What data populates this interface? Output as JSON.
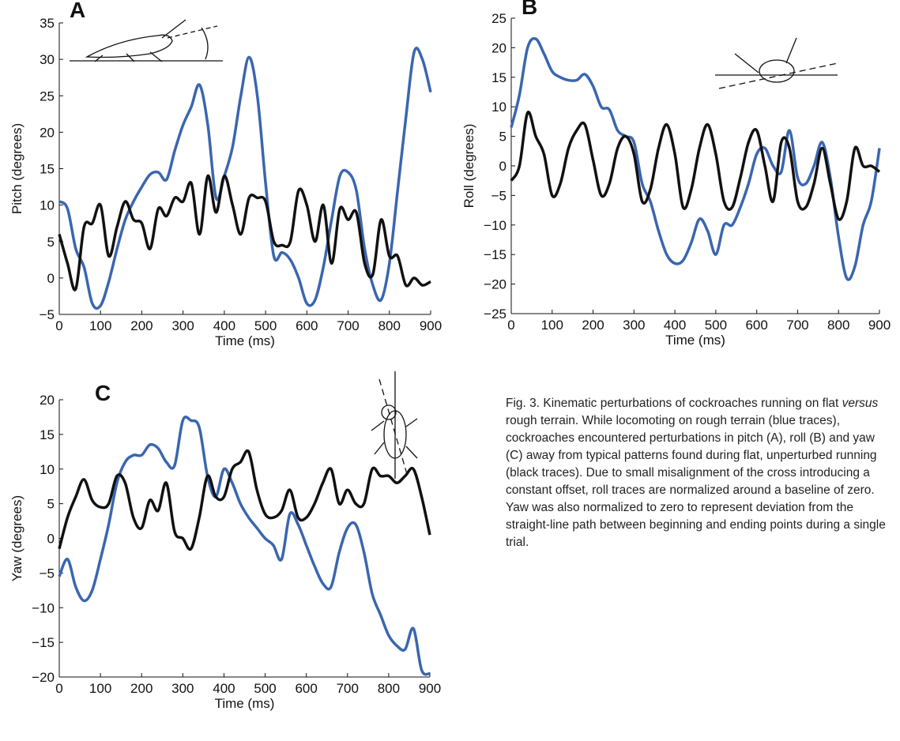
{
  "chart_data": [
    {
      "type": "line",
      "panel": "A",
      "xlabel": "Time (ms)",
      "ylabel": "Pitch (degrees)",
      "x": [
        0,
        20,
        40,
        60,
        80,
        100,
        120,
        140,
        160,
        180,
        200,
        220,
        240,
        260,
        280,
        300,
        320,
        340,
        360,
        380,
        400,
        420,
        440,
        460,
        480,
        500,
        520,
        540,
        560,
        580,
        600,
        620,
        640,
        660,
        680,
        700,
        720,
        740,
        760,
        780,
        800,
        820,
        840,
        860,
        880,
        900
      ],
      "series": [
        {
          "color": "#3a66b0",
          "values": [
            10.5,
            9.5,
            4,
            1.5,
            -3.5,
            -3.8,
            -0.5,
            4,
            8,
            10.5,
            12.5,
            14.2,
            14.5,
            13.5,
            17.5,
            21,
            23.5,
            26.5,
            21,
            11,
            14,
            18,
            25,
            30.3,
            25,
            13,
            3,
            3.5,
            2.5,
            0,
            -3.5,
            -3,
            1.5,
            8,
            14,
            14.5,
            12,
            4,
            -1,
            -3,
            2,
            12,
            22,
            31,
            30,
            25.5
          ]
        },
        {
          "color": "#111111",
          "values": [
            6,
            2,
            -1.5,
            7,
            7.5,
            10,
            3,
            7,
            10.5,
            8,
            7.5,
            4,
            9.5,
            8.5,
            11,
            10.5,
            13,
            6,
            14,
            9,
            14,
            10,
            6,
            11,
            11,
            10.5,
            5,
            4.5,
            5,
            12,
            10,
            5,
            10,
            2,
            9.5,
            8,
            9,
            2,
            0.5,
            8,
            3,
            3,
            -1,
            0,
            -1,
            -0.5
          ]
        }
      ],
      "xlim": [
        0,
        900
      ],
      "xticks": [
        0,
        100,
        200,
        300,
        400,
        500,
        600,
        700,
        800,
        900
      ],
      "ylim": [
        -5,
        35
      ],
      "yticks": [
        {
          "value": -5,
          "label": "−5"
        },
        0,
        5,
        10,
        15,
        20,
        25,
        30,
        35
      ],
      "grid": false
    },
    {
      "type": "line",
      "panel": "B",
      "xlabel": "Time (ms)",
      "ylabel": "Roll (degrees)",
      "x": [
        0,
        20,
        40,
        60,
        80,
        100,
        120,
        140,
        160,
        180,
        200,
        220,
        240,
        260,
        280,
        300,
        320,
        340,
        360,
        380,
        400,
        420,
        440,
        460,
        480,
        500,
        520,
        540,
        560,
        580,
        600,
        620,
        640,
        660,
        680,
        700,
        720,
        740,
        760,
        780,
        800,
        820,
        840,
        860,
        880,
        900
      ],
      "series": [
        {
          "color": "#3a66b0",
          "values": [
            6.5,
            12,
            20,
            21.5,
            19,
            16,
            15,
            14.5,
            14.5,
            15.5,
            13.5,
            10,
            9.5,
            6,
            5,
            4,
            -3,
            -6,
            -11,
            -15,
            -16.5,
            -16,
            -13,
            -9,
            -11,
            -15,
            -10,
            -10,
            -7,
            -3,
            2,
            3,
            0,
            -1,
            6,
            -2,
            -3,
            0,
            4,
            -2,
            -12,
            -19,
            -17,
            -10,
            -6,
            3
          ]
        },
        {
          "color": "#111111",
          "values": [
            -2.5,
            0,
            9,
            5,
            2,
            -5,
            -3,
            3,
            6,
            7,
            1,
            -5,
            -3,
            3,
            5,
            2,
            -6,
            -4,
            3,
            7,
            2,
            -7,
            -4,
            3,
            7,
            2,
            -6,
            -7,
            -2,
            4,
            6,
            0,
            -6,
            4,
            3,
            -6,
            -7,
            -3,
            3,
            -3,
            -9,
            -6,
            3,
            0,
            0,
            -1
          ]
        }
      ],
      "xlim": [
        0,
        900
      ],
      "xticks": [
        0,
        100,
        200,
        300,
        400,
        500,
        600,
        700,
        800,
        900
      ],
      "ylim": [
        -25,
        25
      ],
      "yticks": [
        {
          "value": -25,
          "label": "−25"
        },
        {
          "value": -20,
          "label": "−20"
        },
        {
          "value": -15,
          "label": "−15"
        },
        {
          "value": -10,
          "label": "−10"
        },
        {
          "value": -5,
          "label": "−5"
        },
        0,
        5,
        10,
        15,
        20,
        25
      ],
      "grid": false
    },
    {
      "type": "line",
      "panel": "C",
      "xlabel": "Time (ms)",
      "ylabel": "Yaw (degrees)",
      "x": [
        0,
        20,
        40,
        60,
        80,
        100,
        120,
        140,
        160,
        180,
        200,
        220,
        240,
        260,
        280,
        300,
        320,
        340,
        360,
        380,
        400,
        420,
        440,
        460,
        480,
        500,
        520,
        540,
        560,
        580,
        600,
        620,
        640,
        660,
        680,
        700,
        720,
        740,
        760,
        780,
        800,
        820,
        840,
        860,
        880,
        900
      ],
      "series": [
        {
          "color": "#3a66b0",
          "values": [
            -5.5,
            -3,
            -7,
            -9,
            -7.5,
            -3,
            2,
            8,
            11,
            12,
            12,
            13.5,
            13,
            11,
            10.5,
            17,
            17,
            16,
            9,
            6,
            10,
            8,
            5,
            3,
            1.5,
            0,
            -1,
            -3,
            3.5,
            2,
            -1,
            -4,
            -6.5,
            -7,
            -2,
            1.5,
            2,
            -2,
            -8,
            -11,
            -14,
            -15.5,
            -16,
            -13,
            -19,
            -19.5
          ]
        },
        {
          "color": "#111111",
          "values": [
            -1.5,
            3,
            6,
            8.5,
            5.5,
            4.5,
            5,
            9,
            8,
            3,
            1.5,
            5.5,
            4,
            8,
            1,
            0,
            -1.5,
            3,
            9,
            6,
            6,
            10,
            11,
            12.5,
            7,
            3.5,
            3,
            4,
            7,
            3,
            3,
            5,
            8,
            10,
            5,
            7,
            5,
            5,
            10,
            9,
            9,
            8,
            9,
            10,
            6,
            0.5
          ]
        }
      ],
      "xlim": [
        0,
        900
      ],
      "xticks": [
        0,
        100,
        200,
        300,
        400,
        500,
        600,
        700,
        800,
        900
      ],
      "ylim": [
        -20,
        20
      ],
      "yticks": [
        {
          "value": -20,
          "label": "−20"
        },
        {
          "value": -15,
          "label": "−15"
        },
        {
          "value": -10,
          "label": "−10"
        },
        {
          "value": -5,
          "label": "−5"
        },
        0,
        5,
        10,
        15,
        20
      ],
      "grid": false
    }
  ],
  "caption": [
    "Fig. 3. Kinematic perturbations of cockroaches running on flat ",
    "versus",
    " rough terrain. While locomoting on rough terrain (blue traces), cockroaches encountered perturbations in pitch (A), roll (B) and yaw (C) away from typical patterns found during flat, unperturbed running (black traces). Due to small misalignment of the cross introducing a constant offset, roll traces are normalized around a baseline of zero. Yaw was also normalized to zero to represent deviation from the straight-line path between beginning and ending points during a single trial."
  ]
}
